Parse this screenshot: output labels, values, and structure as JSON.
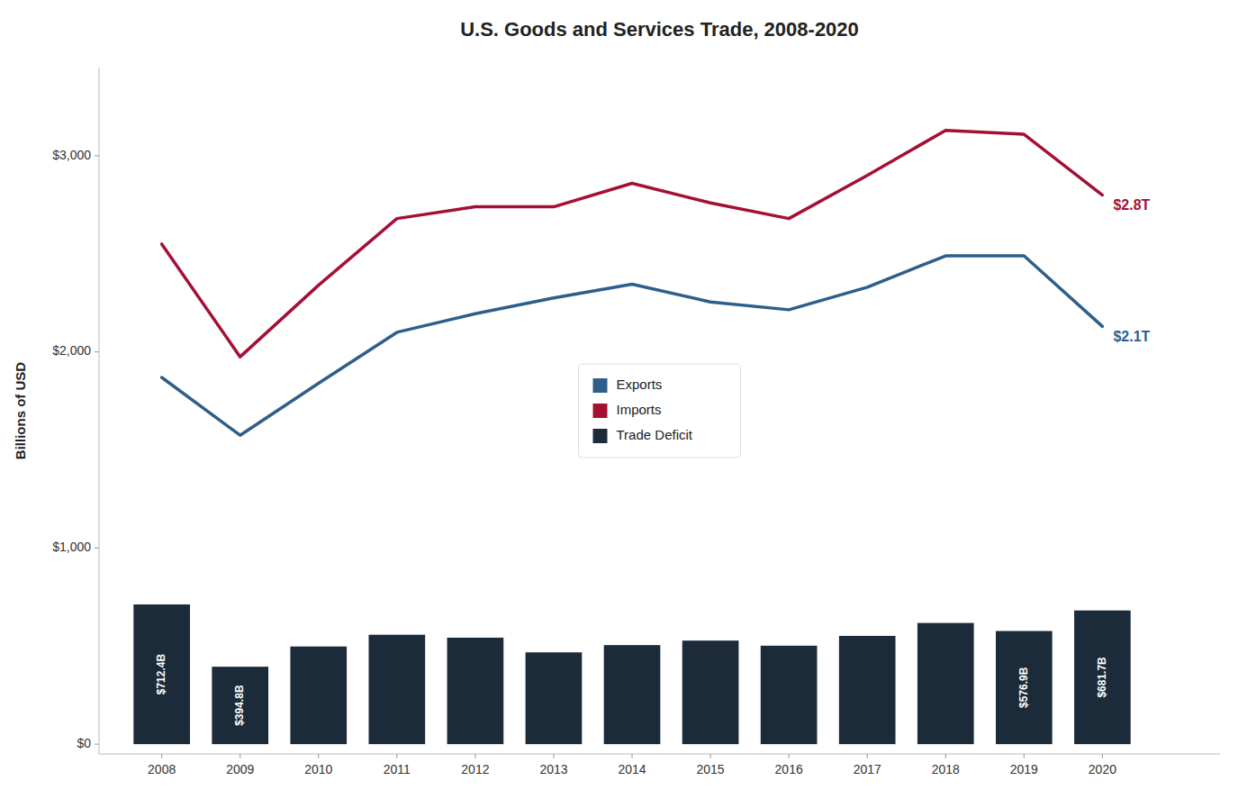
{
  "chart_data": {
    "type": "line",
    "title": "U.S. Goods and Services Trade, 2008-2020",
    "y_label": "Billions of USD",
    "x": [
      2008,
      2009,
      2010,
      2011,
      2012,
      2013,
      2014,
      2015,
      2016,
      2017,
      2018,
      2019,
      2020
    ],
    "xlim": [
      2007.2,
      2021.5
    ],
    "xticks": [
      2008,
      2009,
      2010,
      2011,
      2012,
      2013,
      2014,
      2015,
      2016,
      2017,
      2018,
      2019,
      2020
    ],
    "ylim": [
      -50,
      3450
    ],
    "yticks": [
      {
        "value": 0,
        "label": "$0"
      },
      {
        "value": 1000,
        "label": "$1,000"
      },
      {
        "value": 2000,
        "label": "$2,000"
      },
      {
        "value": 3000,
        "label": "$3,000"
      }
    ],
    "grid": false,
    "legend": "center",
    "series": [
      {
        "name": "Exports",
        "type": "line",
        "color": "#2E5F8A",
        "values": [
          1870,
          1575,
          1840,
          2100,
          2195,
          2275,
          2345,
          2255,
          2215,
          2330,
          2490,
          2490,
          2130
        ],
        "value_labels": [
          null,
          null,
          null,
          null,
          null,
          null,
          null,
          null,
          null,
          null,
          null,
          null,
          "$2.1T"
        ]
      },
      {
        "name": "Imports",
        "type": "line",
        "color": "#A41034",
        "values": [
          2550,
          1975,
          2340,
          2680,
          2740,
          2740,
          2860,
          2760,
          2680,
          2900,
          3130,
          3110,
          2800
        ],
        "value_labels": [
          null,
          null,
          null,
          null,
          null,
          null,
          null,
          null,
          null,
          null,
          null,
          null,
          "$2.8T"
        ]
      },
      {
        "name": "Trade Deficit",
        "type": "bar",
        "color": "#1C2B3A",
        "values": [
          712.4,
          394.8,
          498,
          558,
          543,
          468,
          505,
          528,
          502,
          552,
          618,
          576.9,
          681.7
        ],
        "value_labels": [
          "$712.4B",
          "$394.8B",
          null,
          null,
          null,
          null,
          null,
          null,
          null,
          null,
          null,
          "$576.9B",
          "$681.7B"
        ]
      }
    ]
  }
}
